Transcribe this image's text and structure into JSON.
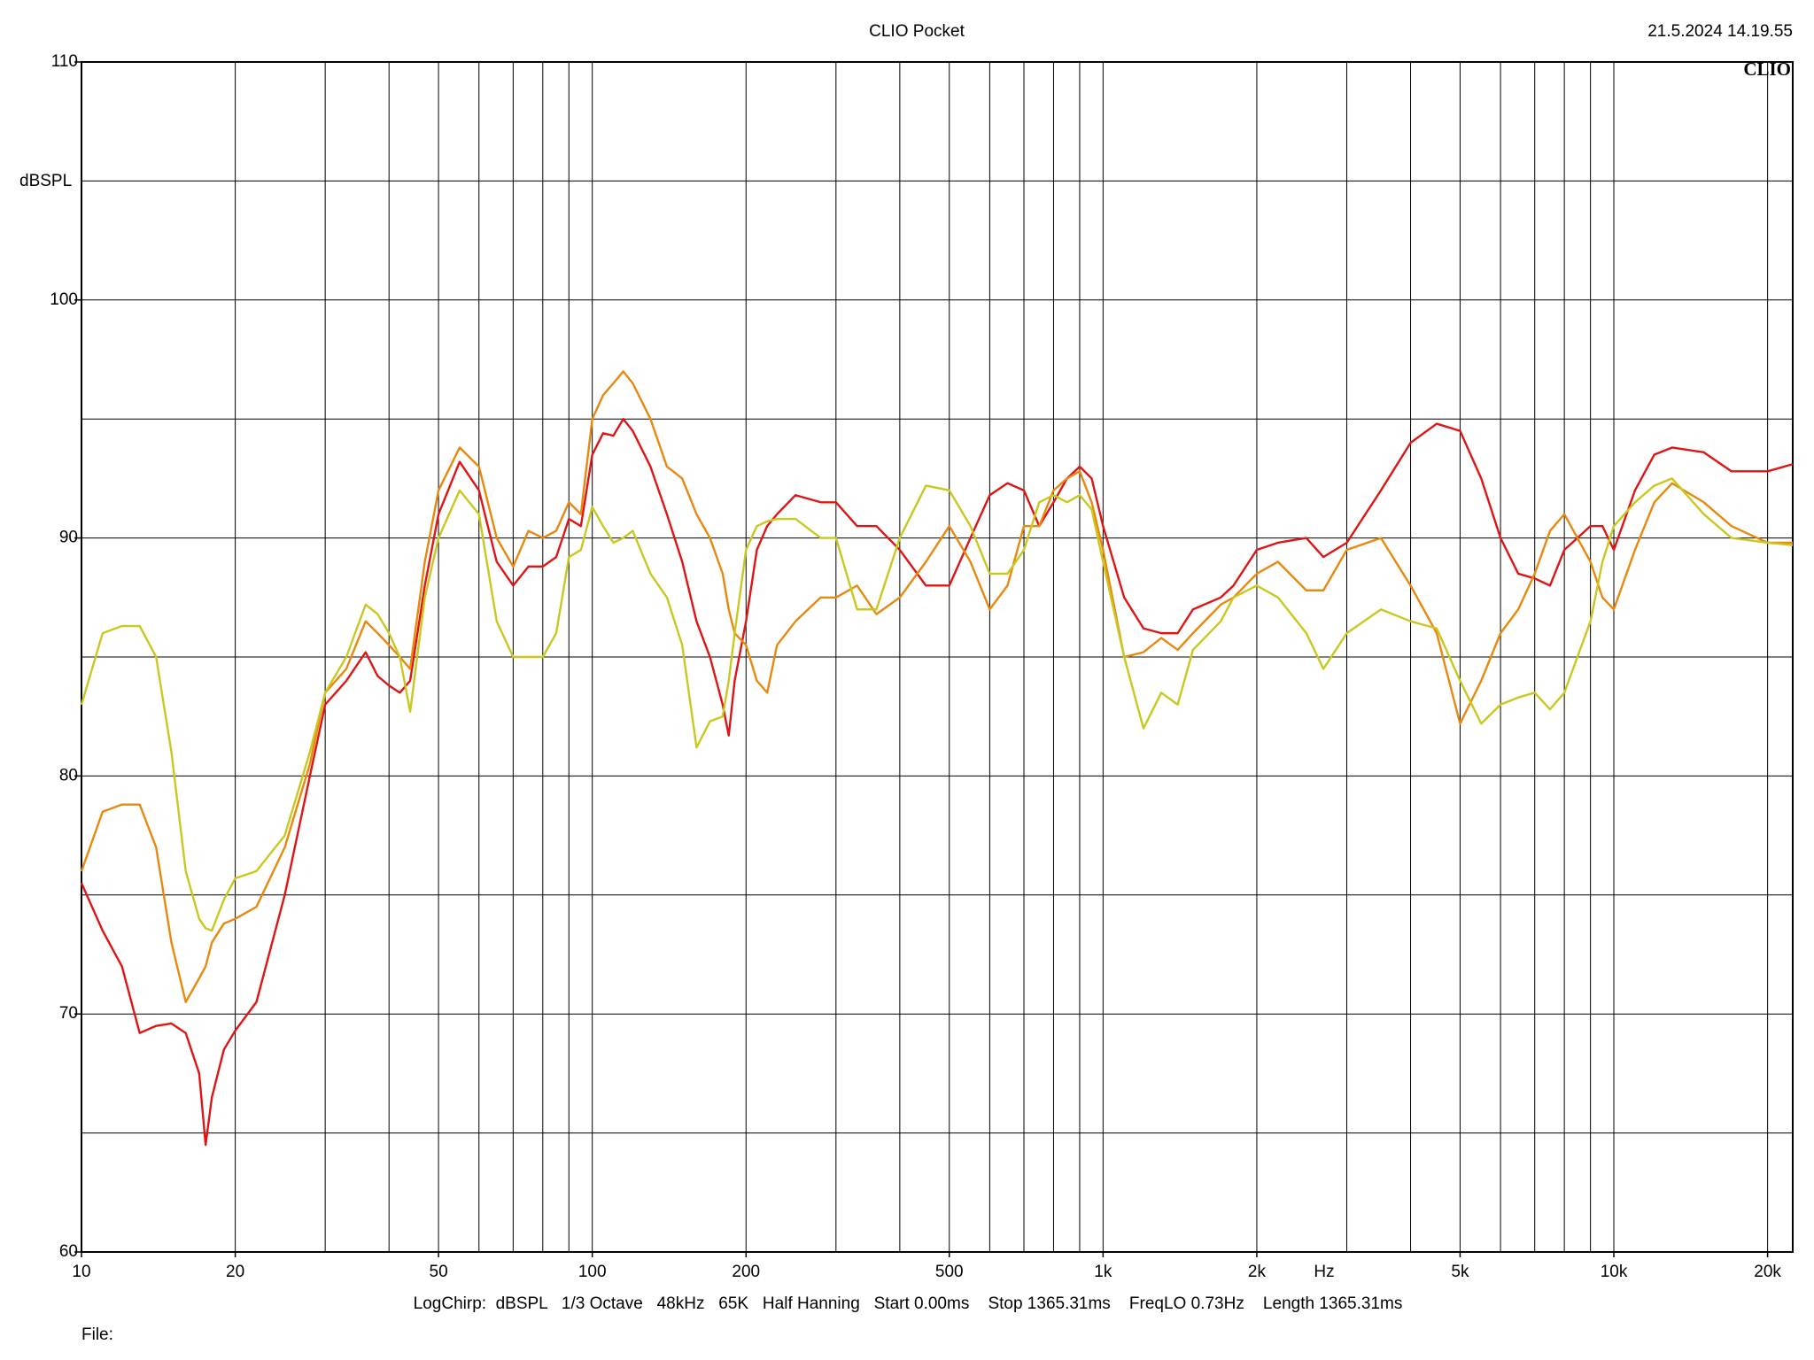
{
  "chart_data": {
    "type": "line",
    "title": "CLIO Pocket",
    "timestamp": "21.5.2024 14.19.55",
    "logo": "CLIO",
    "y_label": "dBSPL",
    "x_label": "Hz",
    "footer": "LogChirp:  dBSPL   1/3 Octave   48kHz   65K   Half Hanning   Start 0.00ms    Stop 1365.31ms    FreqLO 0.73Hz    Length 1365.31ms",
    "file_label": "File:",
    "x_scale": "log",
    "xlim": [
      10,
      22400
    ],
    "ylim": [
      60,
      110
    ],
    "xticks": [
      10,
      20,
      50,
      100,
      200,
      500,
      {
        "value": 1000,
        "label": "1k"
      },
      {
        "value": 2000,
        "label": "2k"
      },
      {
        "value": 5000,
        "label": "5k"
      },
      {
        "value": 10000,
        "label": "10k"
      },
      {
        "value": 20000,
        "label": "20k"
      }
    ],
    "yticks": [
      60,
      70,
      80,
      90,
      100,
      110
    ],
    "xgrid": [
      20,
      30,
      40,
      50,
      60,
      70,
      80,
      90,
      100,
      200,
      300,
      400,
      500,
      600,
      700,
      800,
      900,
      1000,
      2000,
      3000,
      4000,
      5000,
      6000,
      7000,
      8000,
      9000,
      10000,
      20000
    ],
    "ygrid": [
      65,
      70,
      75,
      80,
      85,
      90,
      95,
      100,
      105
    ],
    "x": [
      10,
      11,
      12,
      13,
      14,
      15,
      16,
      17,
      17.5,
      18,
      19,
      20,
      22,
      25,
      28,
      30,
      33,
      36,
      38,
      40,
      42,
      44,
      47,
      50,
      55,
      60,
      65,
      70,
      75,
      80,
      85,
      90,
      95,
      100,
      105,
      110,
      115,
      120,
      130,
      140,
      150,
      160,
      170,
      180,
      185,
      190,
      200,
      210,
      220,
      230,
      250,
      280,
      300,
      330,
      360,
      400,
      450,
      500,
      550,
      600,
      650,
      700,
      750,
      800,
      850,
      900,
      950,
      1000,
      1100,
      1200,
      1300,
      1400,
      1500,
      1700,
      1800,
      2000,
      2200,
      2500,
      2700,
      3000,
      3500,
      4000,
      4500,
      5000,
      5500,
      6000,
      6500,
      7000,
      7500,
      8000,
      9000,
      9500,
      10000,
      11000,
      12000,
      13000,
      15000,
      17000,
      20000,
      22400
    ],
    "series": [
      {
        "color": "#e01414",
        "values": [
          75.5,
          73.5,
          72,
          69.2,
          69.5,
          69.6,
          69.2,
          67.5,
          64.5,
          66.5,
          68.5,
          69.3,
          70.5,
          75,
          80,
          83,
          84,
          85.2,
          84.2,
          83.8,
          83.5,
          84,
          88,
          91,
          93.2,
          92,
          89,
          88,
          88.8,
          88.8,
          89.2,
          90.8,
          90.5,
          93.5,
          94.4,
          94.3,
          95,
          94.5,
          93,
          91,
          89,
          86.5,
          85,
          83,
          81.7,
          84,
          86.5,
          89.5,
          90.5,
          91,
          91.8,
          91.5,
          91.5,
          90.5,
          90.5,
          89.5,
          88,
          88,
          90,
          91.8,
          92.3,
          92,
          90.5,
          91.5,
          92.5,
          93,
          92.5,
          90.5,
          87.5,
          86.2,
          86,
          86,
          87,
          87.5,
          88,
          89.5,
          89.8,
          90,
          89.2,
          89.8,
          92,
          94,
          94.8,
          94.5,
          92.5,
          90,
          88.5,
          88.3,
          88,
          89.5,
          90.5,
          90.5,
          89.5,
          92,
          93.5,
          93.8,
          93.6,
          92.8,
          92.8,
          93.1
        ]
      },
      {
        "color": "#e8880f",
        "values": [
          76,
          78.5,
          78.8,
          78.8,
          77,
          73,
          70.5,
          71.5,
          72,
          73,
          73.8,
          74,
          74.5,
          77,
          80.5,
          83.5,
          84.5,
          86.5,
          86,
          85.5,
          85,
          84.5,
          89,
          92,
          93.8,
          93,
          90,
          88.8,
          90.3,
          90,
          90.3,
          91.5,
          91,
          95,
          96,
          96.5,
          97,
          96.5,
          95,
          93,
          92.5,
          91,
          90,
          88.5,
          87,
          86,
          85.5,
          84,
          83.5,
          85.5,
          86.5,
          87.5,
          87.5,
          88,
          86.8,
          87.5,
          89,
          90.5,
          89,
          87,
          88,
          90.5,
          90.5,
          92,
          92.5,
          92.8,
          91.5,
          89.5,
          85,
          85.2,
          85.8,
          85.3,
          86,
          87.2,
          87.5,
          88.5,
          89,
          87.8,
          87.8,
          89.5,
          90,
          88,
          86,
          82.2,
          84,
          86,
          87,
          88.5,
          90.3,
          91,
          89,
          87.5,
          87,
          89.5,
          91.5,
          92.3,
          91.5,
          90.5,
          89.8,
          89.8
        ]
      },
      {
        "color": "#c8c81e",
        "values": [
          83,
          86,
          86.3,
          86.3,
          85,
          81,
          76,
          74,
          73.6,
          73.5,
          74.8,
          75.7,
          76,
          77.5,
          81,
          83.5,
          85,
          87.2,
          86.8,
          86,
          85,
          82.7,
          87.5,
          90,
          92,
          91,
          86.5,
          85,
          85,
          85,
          86,
          89.2,
          89.5,
          91.3,
          90.5,
          89.8,
          90,
          90.3,
          88.5,
          87.5,
          85.5,
          81.2,
          82.3,
          82.5,
          84,
          86,
          89.5,
          90.5,
          90.7,
          90.8,
          90.8,
          90,
          90,
          87,
          87,
          90,
          92.2,
          92,
          90.5,
          88.5,
          88.5,
          89.5,
          91.5,
          91.8,
          91.5,
          91.8,
          91.2,
          89,
          85,
          82,
          83.5,
          83,
          85.3,
          86.5,
          87.5,
          88,
          87.5,
          86,
          84.5,
          86,
          87,
          86.5,
          86.2,
          84,
          82.2,
          83,
          83.3,
          83.5,
          82.8,
          83.5,
          86.5,
          89,
          90.5,
          91.5,
          92.2,
          92.5,
          91,
          90,
          89.8,
          89.7
        ]
      }
    ]
  }
}
